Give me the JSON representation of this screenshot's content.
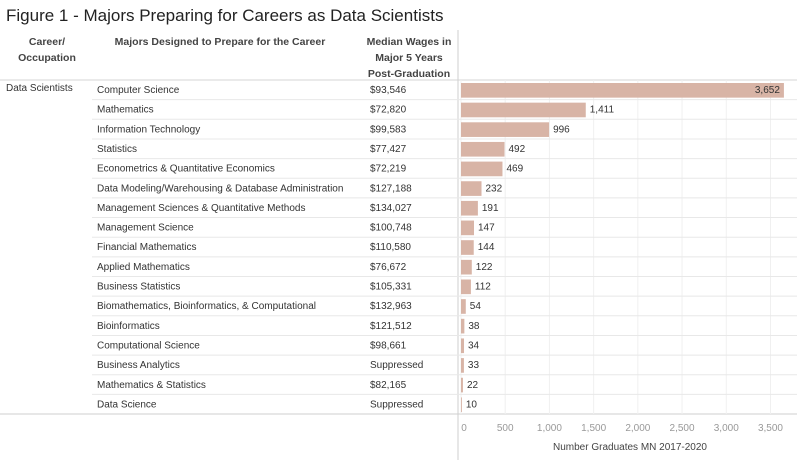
{
  "chart_data": {
    "type": "bar",
    "title": "Figure 1 - Majors Preparing for Careers as Data Scientists",
    "column_headers": {
      "career": "Career/ Occupation",
      "majors": "Majors Designed to Prepare for the Career",
      "wages": "Median Wages in Major 5 Years Post-Graduation"
    },
    "career": "Data Scientists",
    "categories": [
      "Computer Science",
      "Mathematics",
      "Information Technology",
      "Statistics",
      "Econometrics & Quantitative Economics",
      "Data Modeling/Warehousing & Database Administration",
      "Management Sciences & Quantitative Methods",
      "Management Science",
      "Financial Mathematics",
      "Applied Mathematics",
      "Business Statistics",
      "Biomathematics, Bioinformatics, & Computational",
      "Bioinformatics",
      "Computational Science",
      "Business Analytics",
      "Mathematics & Statistics",
      "Data Science"
    ],
    "wages": [
      "$93,546",
      "$72,820",
      "$99,583",
      "$77,427",
      "$72,219",
      "$127,188",
      "$134,027",
      "$100,748",
      "$110,580",
      "$76,672",
      "$105,331",
      "$132,963",
      "$121,512",
      "$98,661",
      "Suppressed",
      "$82,165",
      "Suppressed"
    ],
    "values": [
      3652,
      1411,
      996,
      492,
      469,
      232,
      191,
      147,
      144,
      122,
      112,
      54,
      38,
      34,
      33,
      22,
      10
    ],
    "value_labels": [
      "3,652",
      "1,411",
      "996",
      "492",
      "469",
      "232",
      "191",
      "147",
      "144",
      "122",
      "112",
      "54",
      "38",
      "34",
      "33",
      "22",
      "10"
    ],
    "xlabel": "Number Graduates MN 2017-2020",
    "xticks": [
      0,
      500,
      1000,
      1500,
      2000,
      2500,
      3000,
      3500
    ],
    "xtick_labels": [
      "0",
      "500",
      "1,000",
      "1,500",
      "2,000",
      "2,500",
      "3,000",
      "3,500"
    ],
    "xlim": [
      0,
      3800
    ],
    "bar_color": "#d8b4a6",
    "grid": true
  }
}
